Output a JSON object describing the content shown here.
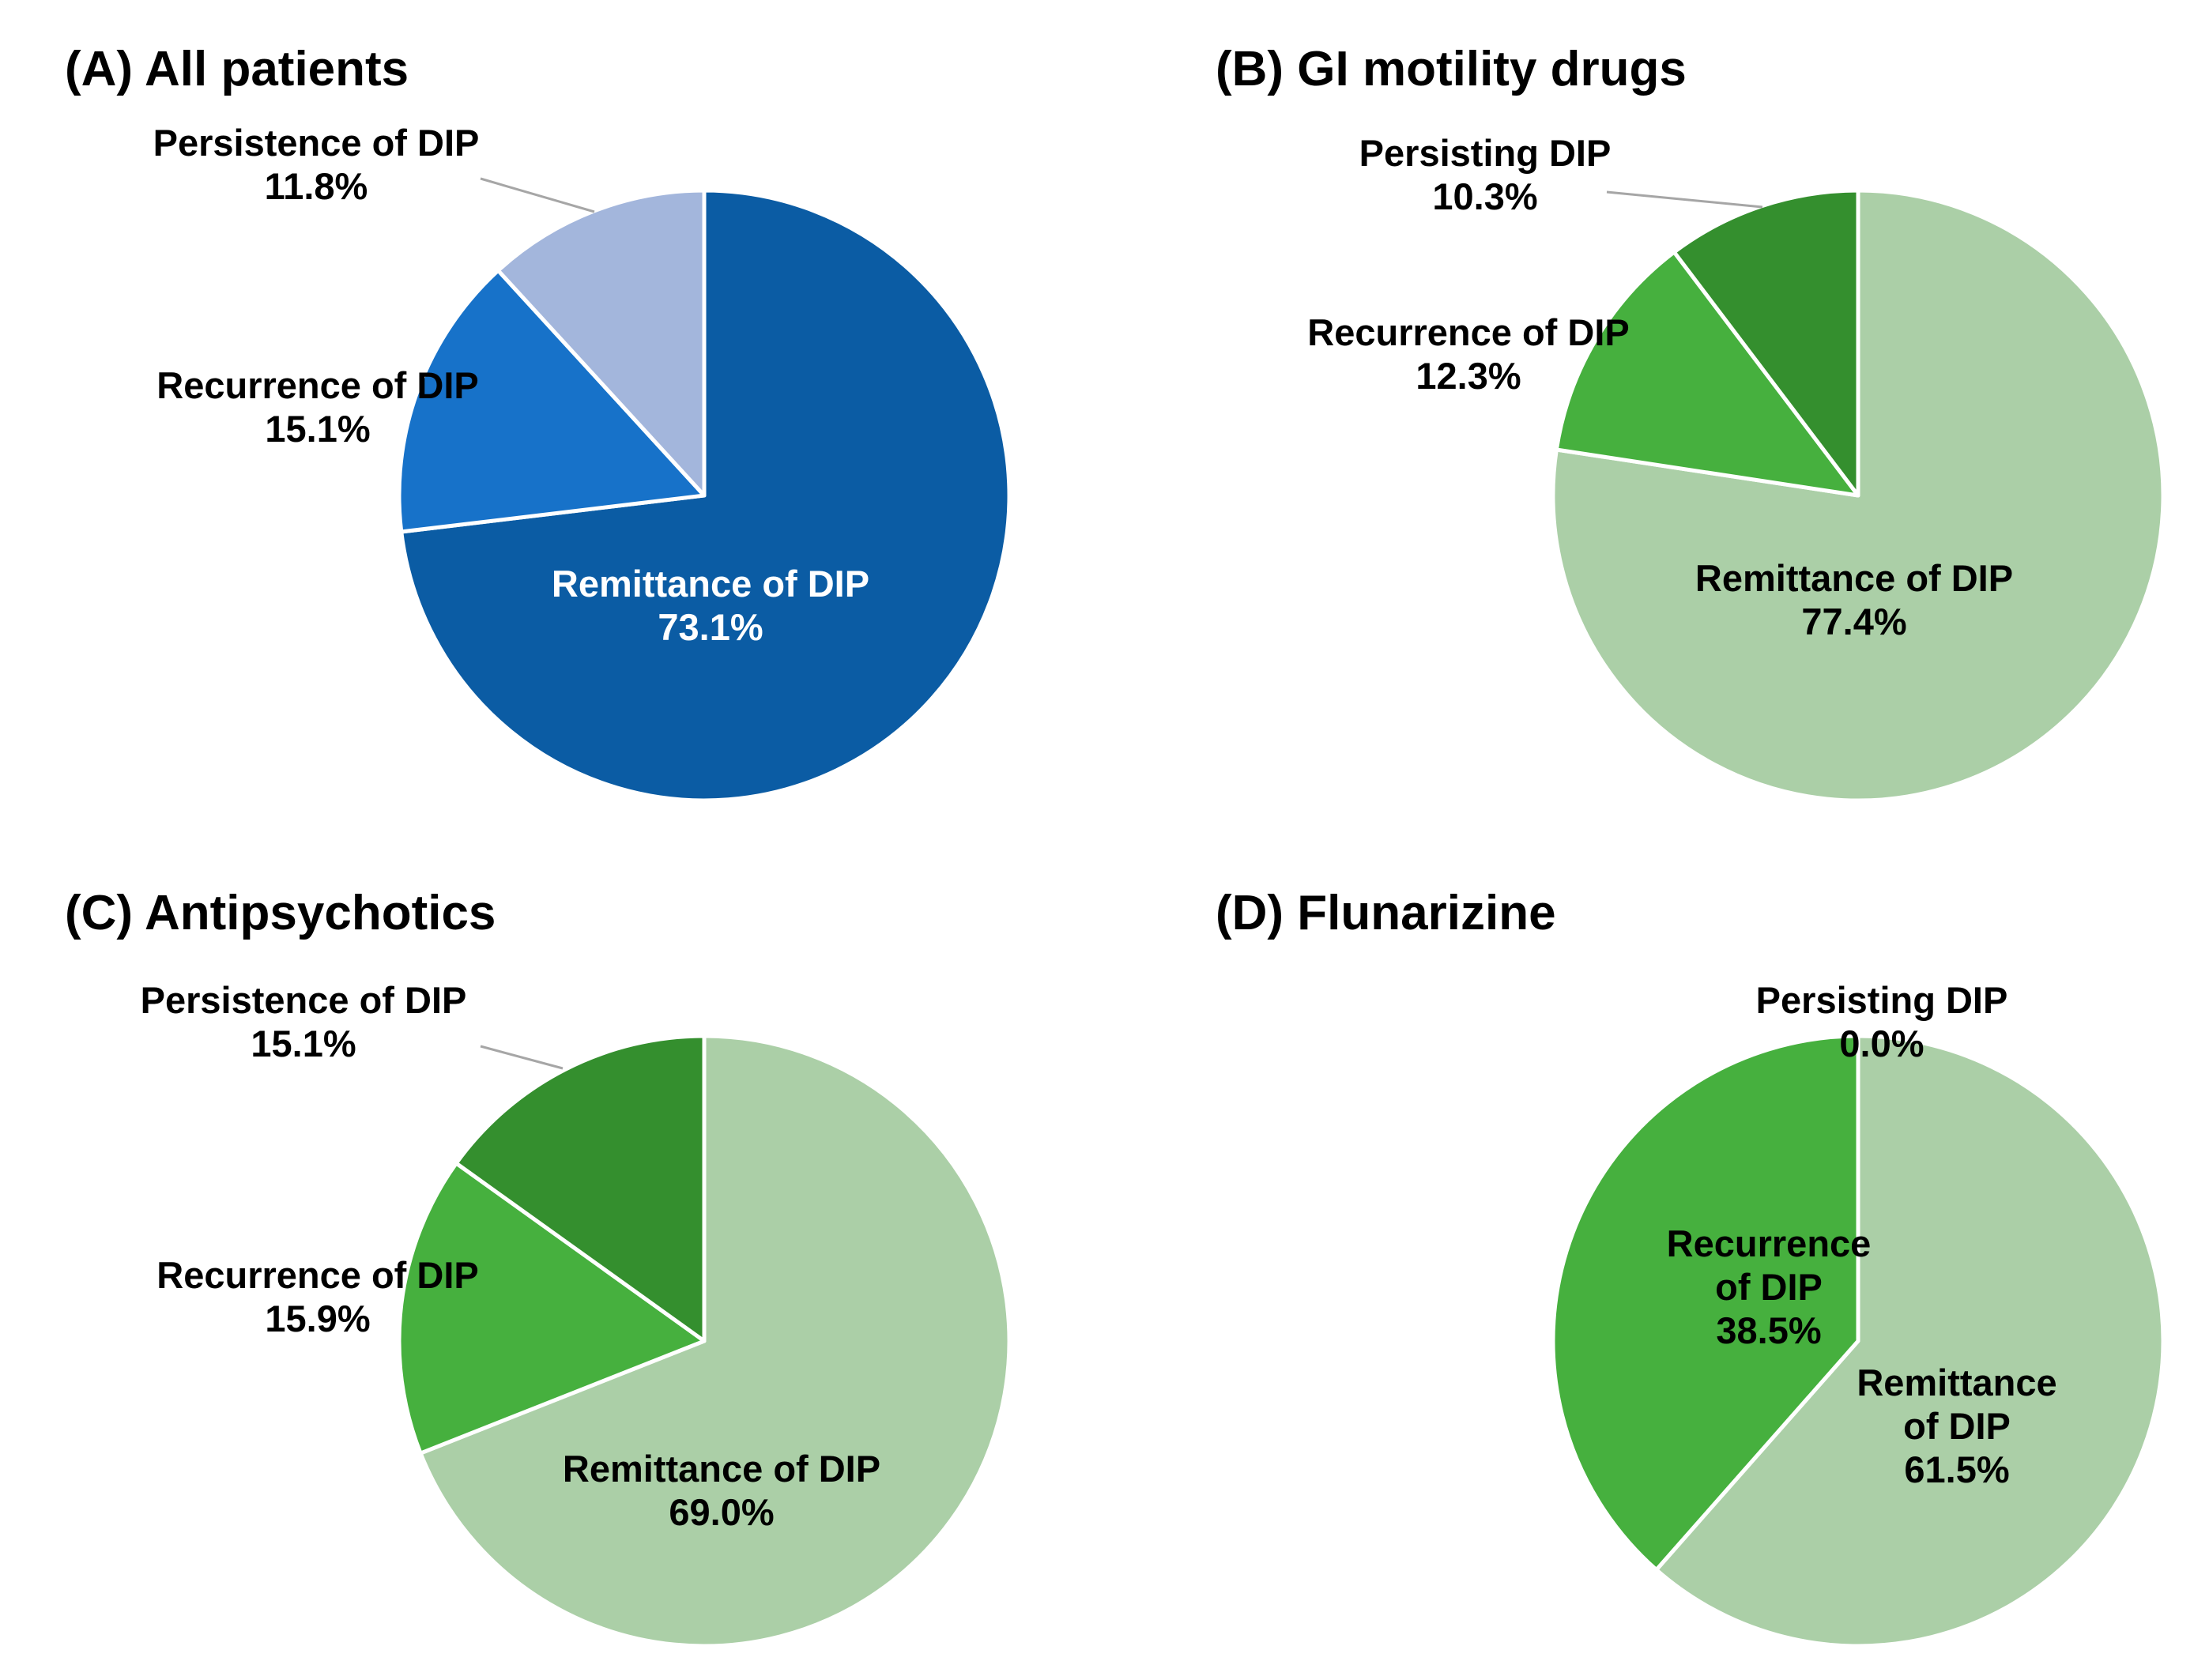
{
  "chart_data": [
    {
      "type": "pie",
      "title": "(A) All patients",
      "slices": [
        {
          "name": "Remittance of DIP",
          "label_lines": [
            "Remittance of DIP"
          ],
          "value_text": "73.1%",
          "value": 73.1,
          "color": "#0b5ca4",
          "text_color": "#ffffff"
        },
        {
          "name": "Recurrence of DIP",
          "label_lines": [
            "Recurrence of DIP"
          ],
          "value_text": "15.1%",
          "value": 15.1,
          "color": "#1772c9",
          "text_color": "#000000"
        },
        {
          "name": "Persistence of DIP",
          "label_lines": [
            "Persistence of DIP"
          ],
          "value_text": "11.8%",
          "value": 11.8,
          "color": "#a3b6dc",
          "text_color": "#000000"
        }
      ]
    },
    {
      "type": "pie",
      "title": "(B) GI motility drugs",
      "slices": [
        {
          "name": "Remittance of DIP",
          "label_lines": [
            "Remittance of DIP"
          ],
          "value_text": "77.4%",
          "value": 77.4,
          "color": "#abcfa7",
          "text_color": "#000000"
        },
        {
          "name": "Recurrence of DIP",
          "label_lines": [
            "Recurrence of DIP"
          ],
          "value_text": "12.3%",
          "value": 12.3,
          "color": "#46b03e",
          "text_color": "#000000"
        },
        {
          "name": "Persisting DIP",
          "label_lines": [
            "Persisting DIP"
          ],
          "value_text": "10.3%",
          "value": 10.3,
          "color": "#348f2e",
          "text_color": "#000000"
        }
      ]
    },
    {
      "type": "pie",
      "title": "(C) Antipsychotics",
      "slices": [
        {
          "name": "Remittance of DIP",
          "label_lines": [
            "Remittance of DIP"
          ],
          "value_text": "69.0%",
          "value": 69.0,
          "color": "#abcfa7",
          "text_color": "#000000"
        },
        {
          "name": "Recurrence of DIP",
          "label_lines": [
            "Recurrence of DIP"
          ],
          "value_text": "15.9%",
          "value": 15.9,
          "color": "#46b03e",
          "text_color": "#000000"
        },
        {
          "name": "Persistence of DIP",
          "label_lines": [
            "Persistence of DIP"
          ],
          "value_text": "15.1%",
          "value": 15.1,
          "color": "#348f2e",
          "text_color": "#000000"
        }
      ]
    },
    {
      "type": "pie",
      "title": "(D) Flunarizine",
      "slices": [
        {
          "name": "Remittance of DIP",
          "label_lines": [
            "Remittance",
            "of DIP"
          ],
          "value_text": "61.5%",
          "value": 61.5,
          "color": "#abcfa7",
          "text_color": "#000000"
        },
        {
          "name": "Recurrence of DIP",
          "label_lines": [
            "Recurrence",
            "of DIP"
          ],
          "value_text": "38.5%",
          "value": 38.5,
          "color": "#46b03e",
          "text_color": "#000000"
        },
        {
          "name": "Persisting DIP",
          "label_lines": [
            "Persisting DIP"
          ],
          "value_text": "0.0%",
          "value": 0.0,
          "color": "#348f2e",
          "text_color": "#000000"
        }
      ]
    }
  ]
}
